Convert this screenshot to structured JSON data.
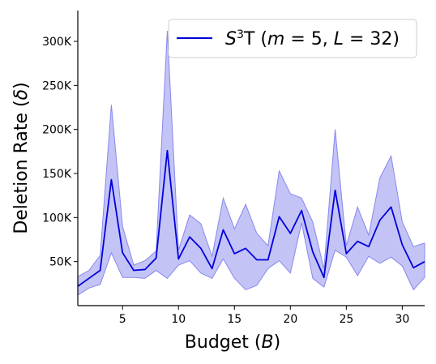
{
  "colors": {
    "line": "#0000dd",
    "band": "#8888ee",
    "band_opacity": 0.5,
    "axis": "#000000"
  },
  "chart_data": {
    "type": "line",
    "title": "",
    "xlabel_prefix": "Budget (",
    "xlabel_var": "B",
    "xlabel_suffix": ")",
    "ylabel_prefix": "Deletion Rate (",
    "ylabel_var": "δ",
    "ylabel_suffix": ")",
    "xlim": [
      1,
      32
    ],
    "ylim": [
      0,
      335000
    ],
    "xticks": [
      5,
      10,
      15,
      20,
      25,
      30
    ],
    "xtick_labels": [
      "5",
      "10",
      "15",
      "20",
      "25",
      "30"
    ],
    "yticks": [
      50000,
      100000,
      150000,
      200000,
      250000,
      300000
    ],
    "ytick_labels": [
      "50K",
      "100K",
      "150K",
      "200K",
      "250K",
      "300K"
    ],
    "grid": false,
    "legend_position": "top-right",
    "legend_label": "S³T (m = 5, L = 32)",
    "series": [
      {
        "name": "S³T (m = 5, L = 32)",
        "x": [
          1,
          2,
          3,
          4,
          5,
          6,
          7,
          8,
          9,
          10,
          11,
          12,
          13,
          14,
          15,
          16,
          17,
          18,
          19,
          20,
          21,
          22,
          23,
          24,
          25,
          26,
          27,
          28,
          29,
          30,
          31,
          32
        ],
        "y": [
          22000,
          31000,
          40000,
          143000,
          60000,
          40000,
          41000,
          54000,
          176000,
          53000,
          78000,
          65000,
          42000,
          86000,
          59000,
          65000,
          52000,
          52000,
          101000,
          82000,
          108000,
          61000,
          32000,
          131000,
          59000,
          73000,
          67000,
          97000,
          112000,
          69000,
          43000,
          50000
        ],
        "lower": [
          12000,
          20000,
          24000,
          60000,
          32000,
          32000,
          31000,
          40000,
          31000,
          46000,
          51000,
          37000,
          31000,
          53000,
          31000,
          18000,
          23000,
          42000,
          51000,
          37000,
          94000,
          31000,
          21000,
          63000,
          55000,
          34000,
          56000,
          48000,
          55000,
          45000,
          18000,
          32000
        ],
        "upper": [
          33000,
          40000,
          57000,
          228000,
          90000,
          46000,
          51000,
          62000,
          312000,
          63000,
          103000,
          93000,
          56000,
          122000,
          87000,
          115000,
          82000,
          68000,
          153000,
          127000,
          122000,
          95000,
          42000,
          200000,
          68000,
          112000,
          80000,
          145000,
          170000,
          95000,
          67000,
          71000
        ]
      }
    ]
  }
}
